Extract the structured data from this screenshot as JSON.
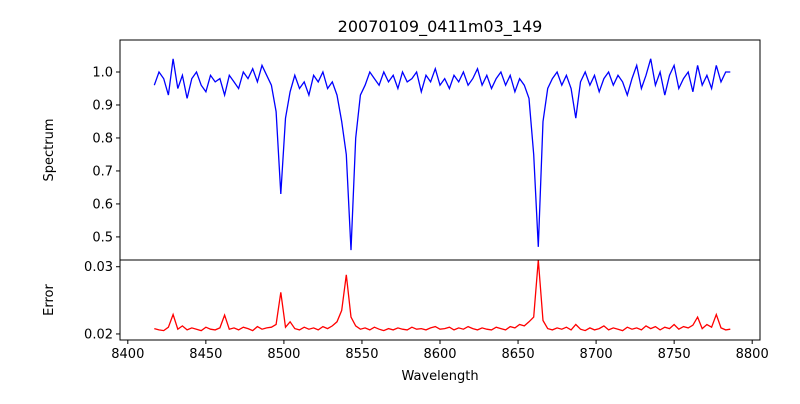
{
  "chart_data": [
    {
      "type": "line",
      "title": "20070109_0411m03_149",
      "xlabel": "",
      "ylabel": "Spectrum",
      "x_start": 8417,
      "x_step": 3,
      "xlim": [
        8395,
        8805
      ],
      "ylim": [
        0.43,
        1.097
      ],
      "yticks": [
        0.5,
        0.6,
        0.7,
        0.8,
        0.9,
        1.0
      ],
      "ytick_labels": [
        "0.5",
        "0.6",
        "0.7",
        "0.8",
        "0.9",
        "1.0"
      ],
      "color": "#0000ff",
      "series": [
        {
          "name": "Spectrum",
          "values": [
            0.96,
            1.0,
            0.98,
            0.93,
            1.04,
            0.95,
            0.99,
            0.92,
            0.98,
            1.0,
            0.96,
            0.94,
            0.99,
            0.97,
            0.98,
            0.93,
            0.99,
            0.97,
            0.95,
            1.0,
            0.98,
            1.01,
            0.97,
            1.02,
            0.99,
            0.96,
            0.88,
            0.63,
            0.86,
            0.94,
            0.99,
            0.95,
            0.97,
            0.93,
            0.99,
            0.97,
            1.0,
            0.95,
            0.97,
            0.93,
            0.85,
            0.75,
            0.46,
            0.8,
            0.93,
            0.96,
            1.0,
            0.98,
            0.96,
            1.0,
            0.97,
            0.99,
            0.95,
            1.0,
            0.97,
            0.98,
            1.0,
            0.94,
            0.99,
            0.97,
            1.01,
            0.96,
            0.98,
            0.95,
            0.99,
            0.97,
            1.0,
            0.96,
            0.98,
            1.01,
            0.96,
            0.99,
            0.95,
            0.98,
            1.0,
            0.96,
            0.99,
            0.94,
            0.98,
            0.96,
            0.92,
            0.75,
            0.47,
            0.85,
            0.95,
            0.98,
            1.0,
            0.96,
            0.99,
            0.95,
            0.86,
            0.97,
            1.0,
            0.96,
            0.99,
            0.94,
            0.98,
            1.0,
            0.96,
            0.99,
            0.97,
            0.93,
            0.98,
            1.02,
            0.95,
            0.99,
            1.04,
            0.96,
            1.0,
            0.93,
            0.99,
            1.02,
            0.95,
            0.98,
            1.0,
            0.94,
            1.02,
            0.96,
            0.99,
            0.95,
            1.02,
            0.97,
            1.0,
            1.0
          ]
        }
      ]
    },
    {
      "type": "line",
      "xlabel": "Wavelength",
      "ylabel": "Error",
      "x_start": 8417,
      "x_step": 3,
      "xlim": [
        8395,
        8805
      ],
      "ylim": [
        0.0191,
        0.031
      ],
      "xticks": [
        8400,
        8450,
        8500,
        8550,
        8600,
        8650,
        8700,
        8750,
        8800
      ],
      "xtick_labels": [
        "8400",
        "8450",
        "8500",
        "8550",
        "8600",
        "8650",
        "8700",
        "8750",
        "8800"
      ],
      "yticks": [
        0.02,
        0.03
      ],
      "ytick_labels": [
        "0.02",
        "0.03"
      ],
      "color": "#ff0000",
      "series": [
        {
          "name": "Error",
          "values": [
            0.0208,
            0.0206,
            0.0205,
            0.021,
            0.0229,
            0.0207,
            0.0212,
            0.0206,
            0.0209,
            0.0207,
            0.0205,
            0.021,
            0.0207,
            0.0206,
            0.0209,
            0.0228,
            0.0207,
            0.0209,
            0.0206,
            0.021,
            0.0208,
            0.0205,
            0.0211,
            0.0207,
            0.0209,
            0.021,
            0.0214,
            0.0262,
            0.021,
            0.0218,
            0.0208,
            0.0206,
            0.021,
            0.0207,
            0.0209,
            0.0206,
            0.0211,
            0.0208,
            0.0212,
            0.0218,
            0.0235,
            0.0288,
            0.0225,
            0.0212,
            0.0207,
            0.0209,
            0.0206,
            0.021,
            0.0207,
            0.0205,
            0.0208,
            0.0206,
            0.0209,
            0.0207,
            0.0206,
            0.021,
            0.0207,
            0.0208,
            0.0206,
            0.0209,
            0.0211,
            0.0207,
            0.0208,
            0.021,
            0.0206,
            0.0209,
            0.0207,
            0.0211,
            0.0208,
            0.0206,
            0.0209,
            0.0207,
            0.0206,
            0.021,
            0.0208,
            0.0206,
            0.0211,
            0.0209,
            0.0214,
            0.0212,
            0.0218,
            0.0225,
            0.031,
            0.022,
            0.0208,
            0.0206,
            0.0209,
            0.0207,
            0.021,
            0.0206,
            0.0214,
            0.0207,
            0.0205,
            0.0209,
            0.0206,
            0.0208,
            0.0212,
            0.0206,
            0.0209,
            0.0207,
            0.0205,
            0.021,
            0.0207,
            0.0209,
            0.0206,
            0.0212,
            0.0208,
            0.0211,
            0.0206,
            0.021,
            0.0208,
            0.0214,
            0.0207,
            0.0211,
            0.0209,
            0.0213,
            0.0225,
            0.0208,
            0.0214,
            0.021,
            0.0229,
            0.0209,
            0.0206,
            0.0207
          ]
        }
      ]
    }
  ]
}
